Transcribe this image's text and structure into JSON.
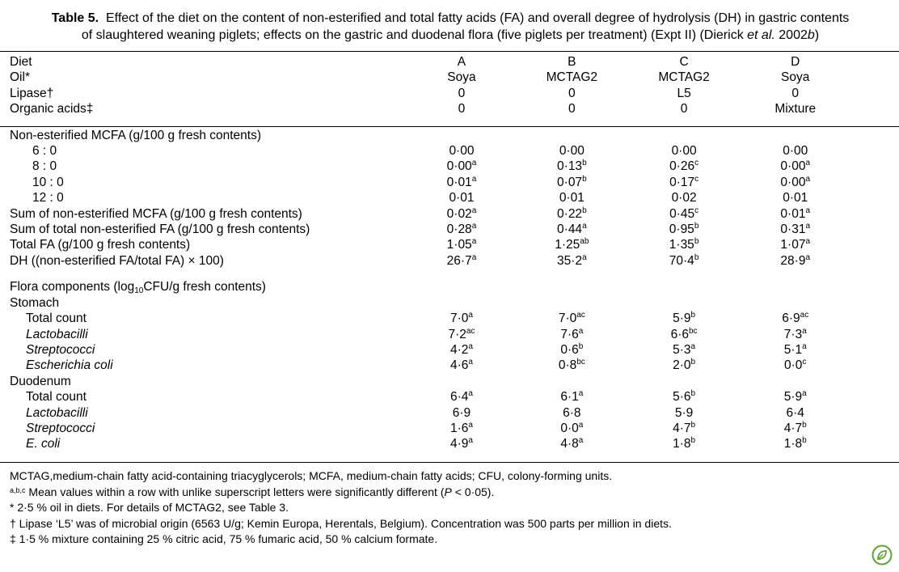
{
  "caption": {
    "label": "Table 5.",
    "line1_rest": "Effect of the diet on the content of non-esterified and total fatty acids  (FA) and overall degree of hydrolysis (DH) in gastric contents",
    "line2_pre": "of slaughtered weaning piglets; effects on the gastric and duodenal flora (five piglets per treatment) (Expt II) (Dierick ",
    "line2_etal": "et al.",
    "line2_year": " 2002",
    "line2_b": "b",
    "line2_close": ")"
  },
  "header_rows": [
    {
      "label": "Diet",
      "values": [
        "A",
        "B",
        "C",
        "D"
      ]
    },
    {
      "label": "Oil*",
      "values": [
        "Soya",
        "MCTAG2",
        "MCTAG2",
        "Soya"
      ]
    },
    {
      "label": "Lipase†",
      "values": [
        "0",
        "0",
        "L5",
        "0"
      ]
    },
    {
      "label": "Organic acids‡",
      "values": [
        "0",
        "0",
        "0",
        "Mixture"
      ]
    }
  ],
  "fa_section": {
    "title": "Non-esterified MCFA (g/100 g fresh contents)",
    "rows": [
      {
        "label": "6 : 0",
        "indent": true,
        "values": [
          {
            "v": "0·00",
            "s": ""
          },
          {
            "v": "0·00",
            "s": ""
          },
          {
            "v": "0·00",
            "s": ""
          },
          {
            "v": "0·00",
            "s": ""
          }
        ]
      },
      {
        "label": "8 : 0",
        "indent": true,
        "values": [
          {
            "v": "0·00",
            "s": "a"
          },
          {
            "v": "0·13",
            "s": "b"
          },
          {
            "v": "0·26",
            "s": "c"
          },
          {
            "v": "0·00",
            "s": "a"
          }
        ]
      },
      {
        "label": "10 : 0",
        "indent": true,
        "values": [
          {
            "v": "0·01",
            "s": "a"
          },
          {
            "v": "0·07",
            "s": "b"
          },
          {
            "v": "0·17",
            "s": "c"
          },
          {
            "v": "0·00",
            "s": "a"
          }
        ]
      },
      {
        "label": "12 : 0",
        "indent": true,
        "values": [
          {
            "v": "0·01",
            "s": ""
          },
          {
            "v": "0·01",
            "s": ""
          },
          {
            "v": "0·02",
            "s": ""
          },
          {
            "v": "0·01",
            "s": ""
          }
        ]
      },
      {
        "label": "Sum of non-esterified MCFA (g/100 g fresh contents)",
        "indent": false,
        "values": [
          {
            "v": "0·02",
            "s": "a"
          },
          {
            "v": "0·22",
            "s": "b"
          },
          {
            "v": "0·45",
            "s": "c"
          },
          {
            "v": "0·01",
            "s": "a"
          }
        ]
      },
      {
        "label": "Sum of total non-esterified FA (g/100 g fresh contents)",
        "indent": false,
        "values": [
          {
            "v": "0·28",
            "s": "a"
          },
          {
            "v": "0·44",
            "s": "a"
          },
          {
            "v": "0·95",
            "s": "b"
          },
          {
            "v": "0·31",
            "s": "a"
          }
        ]
      },
      {
        "label": "Total FA (g/100 g fresh contents)",
        "indent": false,
        "values": [
          {
            "v": "1·05",
            "s": "a"
          },
          {
            "v": "1·25",
            "s": "ab"
          },
          {
            "v": "1·35",
            "s": "b"
          },
          {
            "v": "1·07",
            "s": "a"
          }
        ]
      },
      {
        "label": "DH ((non-esterified FA/total FA) × 100)",
        "indent": false,
        "values": [
          {
            "v": "26·7",
            "s": "a"
          },
          {
            "v": "35·2",
            "s": "a"
          },
          {
            "v": "70·4",
            "s": "b"
          },
          {
            "v": "28·9",
            "s": "a"
          }
        ]
      }
    ]
  },
  "flora_section": {
    "title_pre": "Flora components (log",
    "title_sub": "10",
    "title_post": "CFU/g fresh contents)",
    "groups": [
      {
        "name": "Stomach",
        "rows": [
          {
            "label": "Total count",
            "italic": false,
            "values": [
              {
                "v": "7·0",
                "s": "a"
              },
              {
                "v": "7·0",
                "s": "ac"
              },
              {
                "v": "5·9",
                "s": "b"
              },
              {
                "v": "6·9",
                "s": "ac"
              }
            ]
          },
          {
            "label": "Lactobacilli",
            "italic": true,
            "values": [
              {
                "v": "7·2",
                "s": "ac"
              },
              {
                "v": "7·6",
                "s": "a"
              },
              {
                "v": "6·6",
                "s": "bc"
              },
              {
                "v": "7·3",
                "s": "a"
              }
            ]
          },
          {
            "label": "Streptococci",
            "italic": true,
            "values": [
              {
                "v": "4·2",
                "s": "a"
              },
              {
                "v": "0·6",
                "s": "b"
              },
              {
                "v": "5·3",
                "s": "a"
              },
              {
                "v": "5·1",
                "s": "a"
              }
            ]
          },
          {
            "label": "Escherichia coli",
            "italic": true,
            "values": [
              {
                "v": "4·6",
                "s": "a"
              },
              {
                "v": "0·8",
                "s": "bc"
              },
              {
                "v": "2·0",
                "s": "b"
              },
              {
                "v": "0·0",
                "s": "c"
              }
            ]
          }
        ]
      },
      {
        "name": "Duodenum",
        "rows": [
          {
            "label": "Total count",
            "italic": false,
            "values": [
              {
                "v": "6·4",
                "s": "a"
              },
              {
                "v": "6·1",
                "s": "a"
              },
              {
                "v": "5·6",
                "s": "b"
              },
              {
                "v": "5·9",
                "s": "a"
              }
            ]
          },
          {
            "label": "Lactobacilli",
            "italic": true,
            "values": [
              {
                "v": "6·9",
                "s": ""
              },
              {
                "v": "6·8",
                "s": ""
              },
              {
                "v": "5·9",
                "s": ""
              },
              {
                "v": "6·4",
                "s": ""
              }
            ]
          },
          {
            "label": "Streptococci",
            "italic": true,
            "values": [
              {
                "v": "1·6",
                "s": "a"
              },
              {
                "v": "0·0",
                "s": "a"
              },
              {
                "v": "4·7",
                "s": "b"
              },
              {
                "v": "4·7",
                "s": "b"
              }
            ]
          },
          {
            "label": "E. coli",
            "italic": true,
            "values": [
              {
                "v": "4·9",
                "s": "a"
              },
              {
                "v": "4·8",
                "s": "a"
              },
              {
                "v": "1·8",
                "s": "b"
              },
              {
                "v": "1·8",
                "s": "b"
              }
            ]
          }
        ]
      }
    ]
  },
  "footnotes": {
    "abbrev": "MCTAG,medium-chain fatty acid-containing triacyglycerols; MCFA, medium-chain fatty acids; CFU, colony-forming units.",
    "sig_sup": "a,b,c",
    "sig_pre": " Mean values within a row with unlike superscript letters were significantly different (",
    "sig_p": "P",
    "sig_post": " < 0·05).",
    "star": "* 2·5 % oil in diets. For details of MCTAG2, see Table 3.",
    "dagger": "† Lipase ‘L5’ was of microbial origin (6563 U/g; Kemin Europa, Herentals, Belgium). Concentration was 500 parts per million in diets.",
    "ddagger": "‡ 1·5 % mixture containing 25 % citric acid, 75 % fumaric acid, 50 % calcium formate."
  },
  "colors": {
    "text": "#000000",
    "logo": "#5aa832"
  }
}
